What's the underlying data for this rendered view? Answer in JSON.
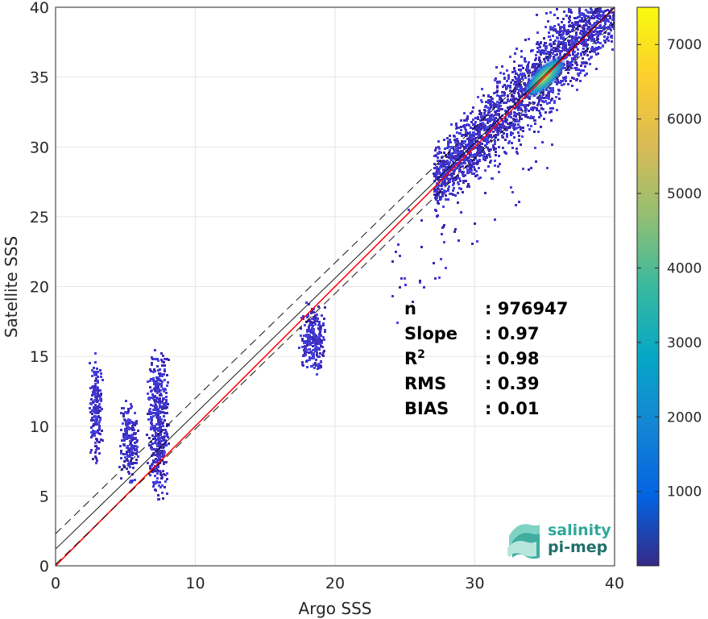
{
  "chart_data": {
    "type": "heatmap",
    "title": "",
    "xlabel": "Argo SSS",
    "ylabel": "Satellite SSS",
    "xlim": [
      0,
      40
    ],
    "ylim": [
      0,
      40
    ],
    "xticks": [
      0,
      10,
      20,
      30,
      40
    ],
    "yticks": [
      0,
      5,
      10,
      15,
      20,
      25,
      30,
      35,
      40
    ],
    "grid": true,
    "colormap": "parula",
    "colorbar": {
      "min": 1,
      "max": 7500,
      "ticks": [
        1000,
        2000,
        3000,
        4000,
        5000,
        6000,
        7000
      ]
    },
    "density_clusters": [
      {
        "x": [
          2.3,
          3.3
        ],
        "y": [
          7.2,
          15.5
        ],
        "peak_count": 150
      },
      {
        "x": [
          4.5,
          5.9
        ],
        "y": [
          5.7,
          12.0
        ],
        "peak_count": 350
      },
      {
        "x": [
          6.4,
          8.1
        ],
        "y": [
          4.5,
          16.0
        ],
        "peak_count": 600
      },
      {
        "x": [
          17.3,
          19.3
        ],
        "y": [
          13.7,
          19.3
        ],
        "peak_count": 800
      },
      {
        "x": [
          27.0,
          40.0
        ],
        "y": [
          20.0,
          40.0
        ],
        "peak_count": 7500
      }
    ],
    "density_peak": {
      "x": 35.0,
      "y": 35.0
    },
    "lines": [
      {
        "name": "identity",
        "slope": 1,
        "intercept": 0,
        "color": "#ff0000",
        "style": "solid"
      },
      {
        "name": "fit",
        "slope": 0.97,
        "intercept": 1.2,
        "color": "#000000",
        "style": "solid"
      },
      {
        "name": "fit_upper",
        "slope": 0.97,
        "intercept": 2.3,
        "color": "#000000",
        "style": "dashed"
      },
      {
        "name": "fit_lower",
        "slope": 0.97,
        "intercept": 0.1,
        "color": "#000000",
        "style": "dashed"
      }
    ],
    "stats": [
      {
        "label": "n",
        "value": ": 976947"
      },
      {
        "label": "Slope",
        "value": ": 0.97"
      },
      {
        "label": "R",
        "sup": "2",
        "value": ": 0.98"
      },
      {
        "label": "RMS",
        "value": ": 0.39"
      },
      {
        "label": "BIAS",
        "value": ": 0.01"
      }
    ]
  },
  "logo": {
    "line1": "salinity",
    "line2": "pi-mep"
  }
}
